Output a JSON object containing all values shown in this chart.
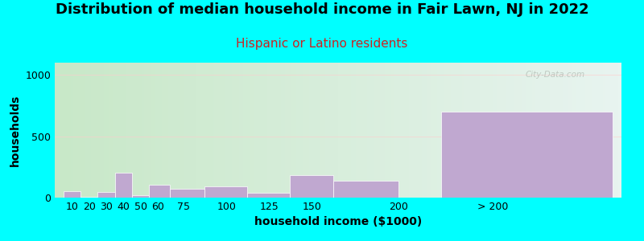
{
  "title": "Distribution of median household income in Fair Lawn, NJ in 2022",
  "subtitle": "Hispanic or Latino residents",
  "xlabel": "household income ($1000)",
  "ylabel": "households",
  "background_color": "#00FFFF",
  "bar_color": "#C0A8D0",
  "bar_edge_color": "#ffffff",
  "categories": [
    "10",
    "20",
    "30",
    "40",
    "50",
    "60",
    "75",
    "100",
    "125",
    "150",
    "200",
    "> 200"
  ],
  "values": [
    55,
    8,
    45,
    200,
    18,
    105,
    75,
    90,
    40,
    185,
    135,
    700
  ],
  "bar_lefts": [
    5,
    15,
    25,
    35,
    45,
    55,
    67,
    87,
    112,
    137,
    162,
    225
  ],
  "bar_widths": [
    10,
    10,
    10,
    10,
    10,
    12,
    20,
    25,
    25,
    25,
    38,
    100
  ],
  "xtick_positions": [
    10,
    20,
    30,
    40,
    50,
    60,
    75,
    100,
    125,
    150,
    200,
    255
  ],
  "xtick_labels": [
    "10",
    "20",
    "30",
    "40",
    "50",
    "60",
    "75",
    "100",
    "125",
    "150",
    "200",
    "> 200"
  ],
  "ylim": [
    0,
    1100
  ],
  "yticks": [
    0,
    500,
    1000
  ],
  "xlim": [
    0,
    330
  ],
  "title_fontsize": 13,
  "subtitle_fontsize": 11,
  "subtitle_color": "#CC2222",
  "axis_label_fontsize": 10,
  "tick_fontsize": 9,
  "watermark": "City-Data.com",
  "gradient_left": "#c8e8c8",
  "gradient_right": "#e8f4f0"
}
